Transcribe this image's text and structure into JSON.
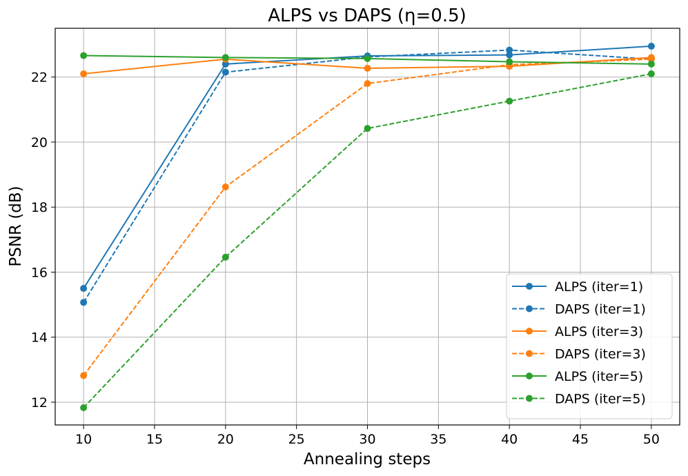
{
  "chart_data": {
    "type": "line",
    "title": "ALPS vs DAPS (η=0.5)",
    "xlabel": "Annealing steps",
    "ylabel": "PSNR (dB)",
    "x": [
      10,
      20,
      30,
      40,
      50
    ],
    "xlim": [
      8,
      52
    ],
    "ylim": [
      11.3,
      23.5
    ],
    "xticks": [
      10,
      15,
      20,
      25,
      30,
      35,
      40,
      45,
      50
    ],
    "yticks": [
      12,
      14,
      16,
      18,
      20,
      22
    ],
    "xtick_labels": [
      "10",
      "15",
      "20",
      "25",
      "30",
      "35",
      "40",
      "45",
      "50"
    ],
    "ytick_labels": [
      "12",
      "14",
      "16",
      "18",
      "20",
      "22"
    ],
    "grid": true,
    "legend_position": "lower-right",
    "series": [
      {
        "name": "ALPS (iter=1)",
        "color": "#1f77b4",
        "linestyle": "solid",
        "values": [
          15.5,
          22.4,
          22.65,
          22.68,
          22.95
        ]
      },
      {
        "name": "DAPS (iter=1)",
        "color": "#1f77b4",
        "linestyle": "dashed",
        "values": [
          15.07,
          22.15,
          22.62,
          22.83,
          22.55
        ]
      },
      {
        "name": "ALPS (iter=3)",
        "color": "#ff7f0e",
        "linestyle": "solid",
        "values": [
          22.1,
          22.55,
          22.27,
          22.33,
          22.6
        ]
      },
      {
        "name": "DAPS (iter=3)",
        "color": "#ff7f0e",
        "linestyle": "dashed",
        "values": [
          12.82,
          18.62,
          21.8,
          22.38,
          22.55
        ]
      },
      {
        "name": "ALPS (iter=5)",
        "color": "#2ca02c",
        "linestyle": "solid",
        "values": [
          22.66,
          22.6,
          22.57,
          22.47,
          22.4
        ]
      },
      {
        "name": "DAPS (iter=5)",
        "color": "#2ca02c",
        "linestyle": "dashed",
        "values": [
          11.83,
          16.46,
          20.42,
          21.26,
          22.1
        ]
      }
    ]
  }
}
